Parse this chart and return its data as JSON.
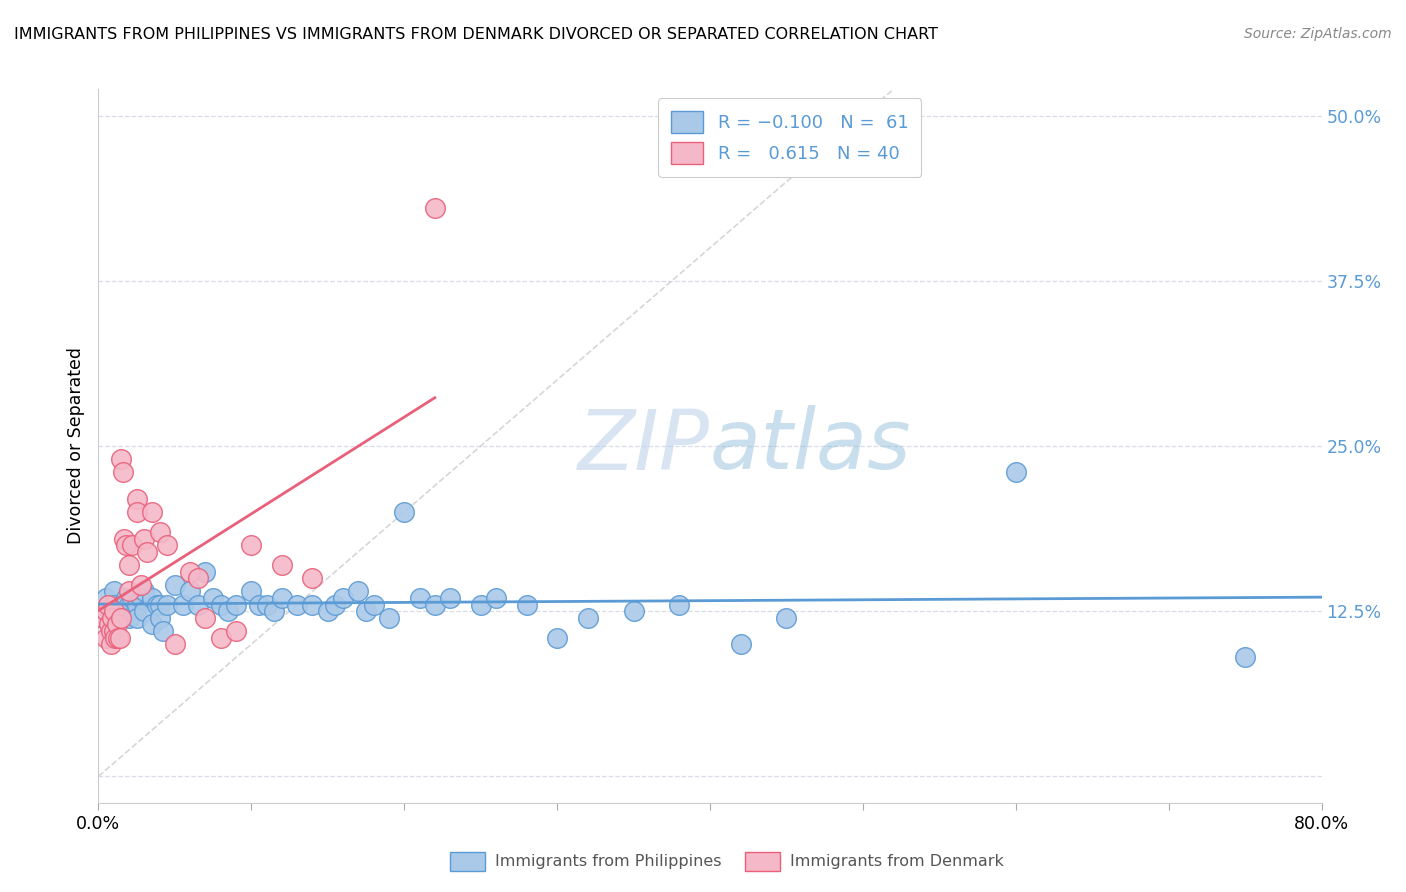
{
  "title": "IMMIGRANTS FROM PHILIPPINES VS IMMIGRANTS FROM DENMARK DIVORCED OR SEPARATED CORRELATION CHART",
  "source": "Source: ZipAtlas.com",
  "ylabel": "Divorced or Separated",
  "ytick_vals": [
    0.0,
    0.125,
    0.25,
    0.375,
    0.5
  ],
  "ytick_labels": [
    "",
    "12.5%",
    "25.0%",
    "37.5%",
    "50.0%"
  ],
  "xtick_vals": [
    0.0,
    0.1,
    0.2,
    0.3,
    0.4,
    0.5,
    0.6,
    0.7,
    0.8
  ],
  "xtick_labels": [
    "0.0%",
    "",
    "",
    "",
    "",
    "",
    "",
    "",
    "80.0%"
  ],
  "color_blue": "#aac9e8",
  "color_pink": "#f5b8c8",
  "line_blue": "#5b9bd5",
  "line_pink": "#e8607a",
  "line_dashed_color": "#cccccc",
  "watermark_color": "#d0e4f5",
  "xlim": [
    0.0,
    0.8
  ],
  "ylim": [
    -0.02,
    0.52
  ],
  "blue_R": -0.1,
  "blue_N": 61,
  "pink_R": 0.615,
  "pink_N": 40,
  "blue_scatter_x": [
    0.005,
    0.008,
    0.01,
    0.01,
    0.012,
    0.015,
    0.015,
    0.018,
    0.02,
    0.02,
    0.022,
    0.025,
    0.025,
    0.028,
    0.03,
    0.03,
    0.035,
    0.035,
    0.038,
    0.04,
    0.04,
    0.042,
    0.045,
    0.05,
    0.055,
    0.06,
    0.065,
    0.07,
    0.075,
    0.08,
    0.085,
    0.09,
    0.1,
    0.105,
    0.11,
    0.115,
    0.12,
    0.13,
    0.14,
    0.15,
    0.155,
    0.16,
    0.17,
    0.175,
    0.18,
    0.19,
    0.2,
    0.21,
    0.22,
    0.23,
    0.25,
    0.26,
    0.28,
    0.3,
    0.32,
    0.35,
    0.38,
    0.42,
    0.45,
    0.6,
    0.75
  ],
  "blue_scatter_y": [
    0.135,
    0.125,
    0.14,
    0.13,
    0.125,
    0.13,
    0.12,
    0.135,
    0.13,
    0.12,
    0.135,
    0.13,
    0.12,
    0.135,
    0.14,
    0.125,
    0.135,
    0.115,
    0.13,
    0.13,
    0.12,
    0.11,
    0.13,
    0.145,
    0.13,
    0.14,
    0.13,
    0.155,
    0.135,
    0.13,
    0.125,
    0.13,
    0.14,
    0.13,
    0.13,
    0.125,
    0.135,
    0.13,
    0.13,
    0.125,
    0.13,
    0.135,
    0.14,
    0.125,
    0.13,
    0.12,
    0.2,
    0.135,
    0.13,
    0.135,
    0.13,
    0.135,
    0.13,
    0.105,
    0.12,
    0.125,
    0.13,
    0.1,
    0.12,
    0.23,
    0.09
  ],
  "pink_scatter_x": [
    0.003,
    0.005,
    0.005,
    0.006,
    0.007,
    0.008,
    0.008,
    0.009,
    0.01,
    0.01,
    0.011,
    0.012,
    0.013,
    0.014,
    0.015,
    0.015,
    0.016,
    0.017,
    0.018,
    0.02,
    0.02,
    0.022,
    0.025,
    0.025,
    0.028,
    0.03,
    0.032,
    0.035,
    0.04,
    0.045,
    0.05,
    0.06,
    0.065,
    0.07,
    0.08,
    0.09,
    0.1,
    0.12,
    0.14,
    0.22
  ],
  "pink_scatter_y": [
    0.12,
    0.125,
    0.105,
    0.13,
    0.115,
    0.11,
    0.1,
    0.12,
    0.125,
    0.11,
    0.105,
    0.115,
    0.105,
    0.105,
    0.12,
    0.24,
    0.23,
    0.18,
    0.175,
    0.16,
    0.14,
    0.175,
    0.21,
    0.2,
    0.145,
    0.18,
    0.17,
    0.2,
    0.185,
    0.175,
    0.1,
    0.155,
    0.15,
    0.12,
    0.105,
    0.11,
    0.175,
    0.16,
    0.15,
    0.43
  ]
}
